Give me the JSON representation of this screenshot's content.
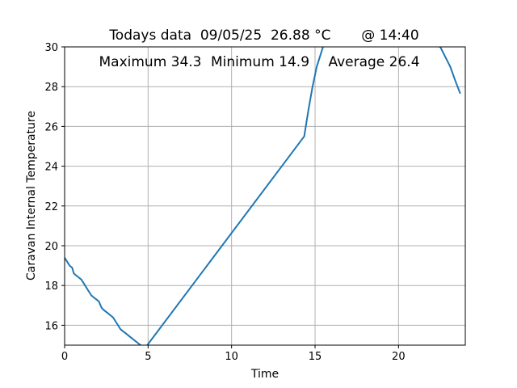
{
  "chart_data": {
    "type": "line",
    "title": "Todays data  09/05/25  26.88 °C       @ 14:40",
    "xlabel": "Time",
    "ylabel": "Caravan Internal Temperature",
    "xlim": [
      0,
      24
    ],
    "ylim": [
      15,
      30
    ],
    "x_ticks": [
      0,
      5,
      10,
      15,
      20
    ],
    "y_ticks": [
      16,
      18,
      20,
      22,
      24,
      26,
      28,
      30
    ],
    "grid": true,
    "line_color": "#1f77b4",
    "annotations": [
      {
        "text": "Maximum 34.3"
      },
      {
        "text": "Minimum 14.9"
      },
      {
        "text": "Average 26.4"
      }
    ],
    "series": [
      {
        "x": [
          0,
          0.15,
          0.3,
          0.45,
          0.55,
          0.7,
          0.85,
          1.0,
          1.15,
          1.3,
          1.45,
          1.6,
          1.75,
          1.9,
          2.05,
          2.2,
          2.3,
          2.45,
          2.6,
          2.75,
          2.9,
          3.05,
          3.2,
          3.35,
          3.5,
          3.65,
          3.8,
          3.95,
          4.1,
          4.25,
          4.4,
          4.55,
          4.7,
          4.8,
          4.95,
          14.35,
          14.6,
          14.85,
          15.1,
          15.4,
          15.7,
          15.9,
          22.5,
          22.8,
          23.1,
          23.4,
          23.7
        ],
        "y": [
          19.4,
          19.2,
          19.0,
          18.9,
          18.6,
          18.5,
          18.4,
          18.3,
          18.1,
          17.9,
          17.7,
          17.5,
          17.4,
          17.3,
          17.2,
          16.9,
          16.8,
          16.7,
          16.6,
          16.5,
          16.4,
          16.2,
          16.0,
          15.8,
          15.7,
          15.6,
          15.5,
          15.4,
          15.3,
          15.2,
          15.1,
          15.0,
          14.95,
          14.9,
          15.0,
          25.5,
          26.8,
          28.0,
          29.0,
          29.8,
          30.6,
          31.2,
          30.0,
          29.5,
          29.0,
          28.3,
          27.65
        ]
      }
    ]
  }
}
